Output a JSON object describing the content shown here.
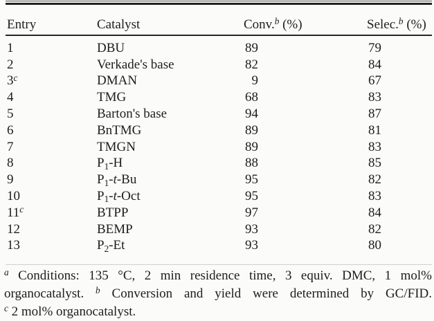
{
  "table": {
    "columns": [
      {
        "label": "Entry",
        "sup": "",
        "unit": ""
      },
      {
        "label": "Catalyst",
        "sup": "",
        "unit": ""
      },
      {
        "label": "Conv.",
        "sup": "b",
        "unit": " (%)"
      },
      {
        "label": "Selec.",
        "sup": "b",
        "unit": " (%)"
      }
    ],
    "rows": [
      {
        "entry": "1",
        "entry_sup": "",
        "catalyst": [
          {
            "t": "DBU"
          }
        ],
        "conv": "89",
        "selec": "79"
      },
      {
        "entry": "2",
        "entry_sup": "",
        "catalyst": [
          {
            "t": "Verkade's base"
          }
        ],
        "conv": "82",
        "selec": "84"
      },
      {
        "entry": "3",
        "entry_sup": "c",
        "catalyst": [
          {
            "t": "DMAN"
          }
        ],
        "conv": "9",
        "selec": "67"
      },
      {
        "entry": "4",
        "entry_sup": "",
        "catalyst": [
          {
            "t": "TMG"
          }
        ],
        "conv": "68",
        "selec": "83"
      },
      {
        "entry": "5",
        "entry_sup": "",
        "catalyst": [
          {
            "t": "Barton's base"
          }
        ],
        "conv": "94",
        "selec": "87"
      },
      {
        "entry": "6",
        "entry_sup": "",
        "catalyst": [
          {
            "t": "BnTMG"
          }
        ],
        "conv": "89",
        "selec": "81"
      },
      {
        "entry": "7",
        "entry_sup": "",
        "catalyst": [
          {
            "t": "TMGN"
          }
        ],
        "conv": "89",
        "selec": "83"
      },
      {
        "entry": "8",
        "entry_sup": "",
        "catalyst": [
          {
            "t": "P"
          },
          {
            "t": "1",
            "s": "sub"
          },
          {
            "t": "-H"
          }
        ],
        "conv": "88",
        "selec": "85"
      },
      {
        "entry": "9",
        "entry_sup": "",
        "catalyst": [
          {
            "t": "P"
          },
          {
            "t": "1",
            "s": "sub"
          },
          {
            "t": "-"
          },
          {
            "t": "t",
            "s": "i"
          },
          {
            "t": "-Bu"
          }
        ],
        "conv": "95",
        "selec": "82"
      },
      {
        "entry": "10",
        "entry_sup": "",
        "catalyst": [
          {
            "t": "P"
          },
          {
            "t": "1",
            "s": "sub"
          },
          {
            "t": "-"
          },
          {
            "t": "t",
            "s": "i"
          },
          {
            "t": "-Oct"
          }
        ],
        "conv": "95",
        "selec": "83"
      },
      {
        "entry": "11",
        "entry_sup": "c",
        "catalyst": [
          {
            "t": "BTPP"
          }
        ],
        "conv": "97",
        "selec": "84"
      },
      {
        "entry": "12",
        "entry_sup": "",
        "catalyst": [
          {
            "t": "BEMP"
          }
        ],
        "conv": "93",
        "selec": "82"
      },
      {
        "entry": "13",
        "entry_sup": "",
        "catalyst": [
          {
            "t": "P"
          },
          {
            "t": "2",
            "s": "sub"
          },
          {
            "t": "-Et"
          }
        ],
        "conv": "93",
        "selec": "80"
      }
    ]
  },
  "footnotes": {
    "lines": [
      [
        {
          "t": "a",
          "s": "sup"
        },
        {
          "t": " Conditions: 135 °C, 2 min residence time, 3 equiv. DMC, 1 mol%"
        }
      ],
      [
        {
          "t": "organocatalyst. "
        },
        {
          "t": "b",
          "s": "sup"
        },
        {
          "t": " Conversion and yield were determined by GC/FID."
        }
      ],
      [
        {
          "t": "c",
          "s": "sup"
        },
        {
          "t": " 2 mol% organocatalyst."
        }
      ]
    ]
  },
  "colors": {
    "background": "#fbfbfa",
    "text": "#1d1d1d",
    "rule_dark": "#222222",
    "rule_faint": "#d0d0cd"
  }
}
